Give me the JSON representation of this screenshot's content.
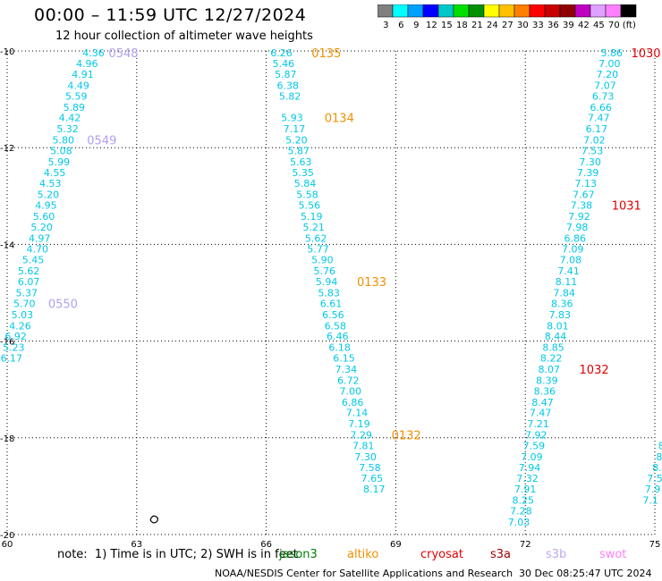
{
  "title": "00:00 – 11:59 UTC 12/27/2024",
  "subtitle": "12 hour collection of altimeter wave heights",
  "colorbar": {
    "colors": [
      "#808080",
      "#00ffff",
      "#00a0ff",
      "#0000ff",
      "#00c8c8",
      "#00e000",
      "#009000",
      "#ffff00",
      "#ffc000",
      "#ff8000",
      "#ff0000",
      "#c80000",
      "#900000",
      "#c000c0",
      "#e0a0ff",
      "#ff80ff",
      "#000000"
    ],
    "labels": [
      "3",
      "6",
      "9",
      "12",
      "15",
      "18",
      "21",
      "24",
      "27",
      "30",
      "33",
      "36",
      "39",
      "42",
      "45",
      "70",
      "(ft)"
    ]
  },
  "map": {
    "lon_ticks": [
      "60",
      "63",
      "66",
      "69",
      "72",
      "75"
    ],
    "lat_ticks": [
      "-10",
      "-12",
      "-14",
      "-16",
      "-18",
      "-20"
    ],
    "lon_range": [
      60,
      75
    ],
    "lat_range": [
      -20,
      -10
    ],
    "land_color": "#000000",
    "grid_color": "#000000"
  },
  "tracks": [
    {
      "name": "track-1",
      "color": "#00c8e6",
      "points": [
        {
          "lon": 62.0,
          "lat": -10.04,
          "v": "4.36"
        },
        {
          "lon": 61.85,
          "lat": -10.26,
          "v": "4.96"
        },
        {
          "lon": 61.75,
          "lat": -10.48,
          "v": "4.91"
        },
        {
          "lon": 61.65,
          "lat": -10.71,
          "v": "4.49"
        },
        {
          "lon": 61.6,
          "lat": -10.93,
          "v": "5.59"
        },
        {
          "lon": 61.55,
          "lat": -11.16,
          "v": "5.89"
        },
        {
          "lon": 61.45,
          "lat": -11.38,
          "v": "4.42"
        },
        {
          "lon": 61.4,
          "lat": -11.61,
          "v": "5.32"
        },
        {
          "lon": 61.3,
          "lat": -11.84,
          "v": "5.80"
        },
        {
          "lon": 61.25,
          "lat": -12.06,
          "v": "5.08"
        },
        {
          "lon": 61.2,
          "lat": -12.29,
          "v": "5.99"
        },
        {
          "lon": 61.1,
          "lat": -12.51,
          "v": "4.55"
        },
        {
          "lon": 61.0,
          "lat": -12.74,
          "v": "4.53"
        },
        {
          "lon": 60.95,
          "lat": -12.97,
          "v": "5.20"
        },
        {
          "lon": 60.9,
          "lat": -13.19,
          "v": "4.95"
        },
        {
          "lon": 60.85,
          "lat": -13.42,
          "v": "5.60"
        },
        {
          "lon": 60.8,
          "lat": -13.64,
          "v": "5.20"
        },
        {
          "lon": 60.75,
          "lat": -13.87,
          "v": "4.97"
        },
        {
          "lon": 60.7,
          "lat": -14.09,
          "v": "4.70"
        },
        {
          "lon": 60.6,
          "lat": -14.32,
          "v": "5.45"
        },
        {
          "lon": 60.5,
          "lat": -14.55,
          "v": "5.62"
        },
        {
          "lon": 60.5,
          "lat": -14.77,
          "v": "6.07"
        },
        {
          "lon": 60.45,
          "lat": -15.0,
          "v": "5.37"
        },
        {
          "lon": 60.4,
          "lat": -15.22,
          "v": "5.70"
        },
        {
          "lon": 60.35,
          "lat": -15.45,
          "v": "5.03"
        },
        {
          "lon": 60.3,
          "lat": -15.68,
          "v": "4.26"
        },
        {
          "lon": 60.2,
          "lat": -15.9,
          "v": "6.92"
        },
        {
          "lon": 60.15,
          "lat": -16.13,
          "v": "5.23"
        },
        {
          "lon": 60.1,
          "lat": -16.35,
          "v": "6.17"
        }
      ]
    },
    {
      "name": "track-2",
      "color": "#00c8e6",
      "points": [
        {
          "lon": 66.35,
          "lat": -10.04,
          "v": "6.26"
        },
        {
          "lon": 66.4,
          "lat": -10.26,
          "v": "5.46"
        },
        {
          "lon": 66.45,
          "lat": -10.48,
          "v": "5.87"
        },
        {
          "lon": 66.5,
          "lat": -10.71,
          "v": "6.38"
        },
        {
          "lon": 66.55,
          "lat": -10.93,
          "v": "5.82"
        },
        {
          "lon": 66.6,
          "lat": -11.38,
          "v": "5.93"
        },
        {
          "lon": 66.65,
          "lat": -11.61,
          "v": "7.17"
        },
        {
          "lon": 66.7,
          "lat": -11.84,
          "v": "5.20"
        },
        {
          "lon": 66.75,
          "lat": -12.06,
          "v": "5.87"
        },
        {
          "lon": 66.8,
          "lat": -12.29,
          "v": "5.63"
        },
        {
          "lon": 66.85,
          "lat": -12.51,
          "v": "5.35"
        },
        {
          "lon": 66.9,
          "lat": -12.74,
          "v": "5.84"
        },
        {
          "lon": 66.95,
          "lat": -12.97,
          "v": "5.58"
        },
        {
          "lon": 67.0,
          "lat": -13.19,
          "v": "5.56"
        },
        {
          "lon": 67.05,
          "lat": -13.42,
          "v": "5.19"
        },
        {
          "lon": 67.1,
          "lat": -13.64,
          "v": "5.21"
        },
        {
          "lon": 67.15,
          "lat": -13.87,
          "v": "5.62"
        },
        {
          "lon": 67.2,
          "lat": -14.09,
          "v": "5.77"
        },
        {
          "lon": 67.3,
          "lat": -14.32,
          "v": "5.90"
        },
        {
          "lon": 67.35,
          "lat": -14.55,
          "v": "5.76"
        },
        {
          "lon": 67.4,
          "lat": -14.77,
          "v": "5.94"
        },
        {
          "lon": 67.45,
          "lat": -15.0,
          "v": "5.83"
        },
        {
          "lon": 67.5,
          "lat": -15.22,
          "v": "6.61"
        },
        {
          "lon": 67.55,
          "lat": -15.45,
          "v": "6.56"
        },
        {
          "lon": 67.6,
          "lat": -15.68,
          "v": "6.58"
        },
        {
          "lon": 67.65,
          "lat": -15.9,
          "v": "6.46"
        },
        {
          "lon": 67.7,
          "lat": -16.13,
          "v": "6.18"
        },
        {
          "lon": 67.8,
          "lat": -16.35,
          "v": "6.15"
        },
        {
          "lon": 67.85,
          "lat": -16.58,
          "v": "7.34"
        },
        {
          "lon": 67.9,
          "lat": -16.81,
          "v": "6.72"
        },
        {
          "lon": 67.95,
          "lat": -17.03,
          "v": "7.00"
        },
        {
          "lon": 68.0,
          "lat": -17.26,
          "v": "6.86"
        },
        {
          "lon": 68.1,
          "lat": -17.48,
          "v": "7.14"
        },
        {
          "lon": 68.15,
          "lat": -17.71,
          "v": "7.19"
        },
        {
          "lon": 68.2,
          "lat": -17.94,
          "v": "7.29"
        },
        {
          "lon": 68.25,
          "lat": -18.16,
          "v": "7.81"
        },
        {
          "lon": 68.3,
          "lat": -18.39,
          "v": "7.30"
        },
        {
          "lon": 68.4,
          "lat": -18.61,
          "v": "7.58"
        },
        {
          "lon": 68.45,
          "lat": -18.84,
          "v": "7.65"
        },
        {
          "lon": 68.5,
          "lat": -19.06,
          "v": "8.17"
        }
      ]
    },
    {
      "name": "track-3",
      "color": "#00c8e6",
      "points": [
        {
          "lon": 74.0,
          "lat": -10.04,
          "v": "5.86"
        },
        {
          "lon": 73.95,
          "lat": -10.26,
          "v": "7.00"
        },
        {
          "lon": 73.9,
          "lat": -10.48,
          "v": "7.20"
        },
        {
          "lon": 73.85,
          "lat": -10.71,
          "v": "7.07"
        },
        {
          "lon": 73.8,
          "lat": -10.93,
          "v": "6.73"
        },
        {
          "lon": 73.75,
          "lat": -11.16,
          "v": "6.66"
        },
        {
          "lon": 73.7,
          "lat": -11.38,
          "v": "7.47"
        },
        {
          "lon": 73.65,
          "lat": -11.61,
          "v": "6.17"
        },
        {
          "lon": 73.6,
          "lat": -11.84,
          "v": "7.02"
        },
        {
          "lon": 73.55,
          "lat": -12.06,
          "v": "7.53"
        },
        {
          "lon": 73.5,
          "lat": -12.29,
          "v": "7.30"
        },
        {
          "lon": 73.45,
          "lat": -12.51,
          "v": "7.39"
        },
        {
          "lon": 73.4,
          "lat": -12.74,
          "v": "7.13"
        },
        {
          "lon": 73.35,
          "lat": -12.97,
          "v": "7.67"
        },
        {
          "lon": 73.3,
          "lat": -13.19,
          "v": "7.38"
        },
        {
          "lon": 73.25,
          "lat": -13.42,
          "v": "7.92"
        },
        {
          "lon": 73.2,
          "lat": -13.64,
          "v": "7.98"
        },
        {
          "lon": 73.15,
          "lat": -13.87,
          "v": "6.86"
        },
        {
          "lon": 73.1,
          "lat": -14.09,
          "v": "7.09"
        },
        {
          "lon": 73.05,
          "lat": -14.32,
          "v": "7.08"
        },
        {
          "lon": 73.0,
          "lat": -14.55,
          "v": "7.41"
        },
        {
          "lon": 72.95,
          "lat": -14.77,
          "v": "8.11"
        },
        {
          "lon": 72.9,
          "lat": -15.0,
          "v": "7.84"
        },
        {
          "lon": 72.85,
          "lat": -15.22,
          "v": "8.36"
        },
        {
          "lon": 72.8,
          "lat": -15.45,
          "v": "7.83"
        },
        {
          "lon": 72.75,
          "lat": -15.68,
          "v": "8.01"
        },
        {
          "lon": 72.7,
          "lat": -15.9,
          "v": "8.44"
        },
        {
          "lon": 72.65,
          "lat": -16.13,
          "v": "8.85"
        },
        {
          "lon": 72.6,
          "lat": -16.35,
          "v": "8.22"
        },
        {
          "lon": 72.55,
          "lat": -16.58,
          "v": "8.07"
        },
        {
          "lon": 72.5,
          "lat": -16.81,
          "v": "8.39"
        },
        {
          "lon": 72.45,
          "lat": -17.03,
          "v": "8.36"
        },
        {
          "lon": 72.4,
          "lat": -17.26,
          "v": "8.47"
        },
        {
          "lon": 72.35,
          "lat": -17.48,
          "v": "7.47"
        },
        {
          "lon": 72.3,
          "lat": -17.71,
          "v": "7.21"
        },
        {
          "lon": 72.25,
          "lat": -17.94,
          "v": "7.92"
        },
        {
          "lon": 72.2,
          "lat": -18.16,
          "v": "7.59"
        },
        {
          "lon": 72.15,
          "lat": -18.39,
          "v": "7.09"
        },
        {
          "lon": 72.1,
          "lat": -18.61,
          "v": "7.94"
        },
        {
          "lon": 72.05,
          "lat": -18.84,
          "v": "7.32"
        },
        {
          "lon": 72.0,
          "lat": -19.06,
          "v": "7.91"
        },
        {
          "lon": 71.95,
          "lat": -19.29,
          "v": "8.25"
        },
        {
          "lon": 71.9,
          "lat": -19.51,
          "v": "7.28"
        },
        {
          "lon": 71.85,
          "lat": -19.74,
          "v": "7.03"
        }
      ]
    },
    {
      "name": "track-4-partial",
      "color": "#00c8e6",
      "points": [
        {
          "lon": 75.15,
          "lat": -18.16,
          "v": "8"
        },
        {
          "lon": 75.1,
          "lat": -18.39,
          "v": "8"
        },
        {
          "lon": 75.05,
          "lat": -18.61,
          "v": "8."
        },
        {
          "lon": 75.0,
          "lat": -18.84,
          "v": "7.5"
        },
        {
          "lon": 74.95,
          "lat": -19.06,
          "v": "7.9"
        },
        {
          "lon": 74.9,
          "lat": -19.29,
          "v": "7.1"
        }
      ]
    }
  ],
  "pass_labels": [
    {
      "text": "0548",
      "lon": 62.35,
      "lat": -10.04,
      "color": "#b0a0f0"
    },
    {
      "text": "0549",
      "lon": 61.85,
      "lat": -11.84,
      "color": "#b0a0f0"
    },
    {
      "text": "0550",
      "lon": 60.95,
      "lat": -15.22,
      "color": "#b0a0f0"
    },
    {
      "text": "0135",
      "lon": 67.05,
      "lat": -10.04,
      "color": "#f09000"
    },
    {
      "text": "0134",
      "lon": 67.35,
      "lat": -11.38,
      "color": "#f09000"
    },
    {
      "text": "0133",
      "lon": 68.1,
      "lat": -14.77,
      "color": "#f09000"
    },
    {
      "text": "0132",
      "lon": 68.9,
      "lat": -17.94,
      "color": "#f09000"
    },
    {
      "text": "1030",
      "lon": 74.45,
      "lat": -10.04,
      "color": "#e00000"
    },
    {
      "text": "1031",
      "lon": 74.0,
      "lat": -13.19,
      "color": "#e00000"
    },
    {
      "text": "1032",
      "lon": 73.25,
      "lat": -16.58,
      "color": "#e00000"
    }
  ],
  "note": "note:  1) Time is in UTC; 2) SWH is in feet",
  "satellites": [
    {
      "name": "jason3",
      "color": "#008000",
      "left": 312
    },
    {
      "name": "altiko",
      "color": "#f09000",
      "left": 388
    },
    {
      "name": "cryosat",
      "color": "#e00000",
      "left": 470
    },
    {
      "name": "s3a",
      "color": "#a00000",
      "left": 548
    },
    {
      "name": "s3b",
      "color": "#c0a8f0",
      "left": 610
    },
    {
      "name": "swot",
      "color": "#ff80ff",
      "left": 670
    }
  ],
  "footer": "NOAA/NESDIS Center for Satellite Applications and Research",
  "footer_time": "30 Dec 08:25:47 UTC 2024"
}
